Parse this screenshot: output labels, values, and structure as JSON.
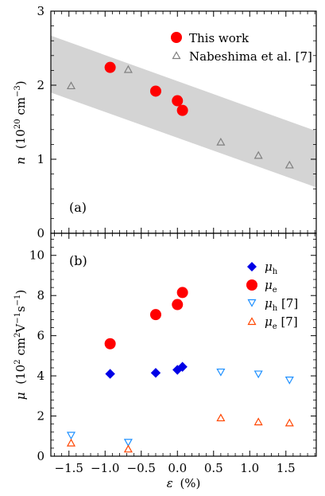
{
  "chart_data": [
    {
      "type": "scatter",
      "panel_label": "(a)",
      "ylabel_main": "n",
      "ylabel_unit": "(10",
      "ylabel_exp": "20",
      "ylabel_unit2": " cm",
      "ylabel_exp2": "−3",
      "ylabel_close": ")",
      "xlim": [
        -1.75,
        1.92
      ],
      "ylim": [
        0,
        3
      ],
      "y_ticks": [
        0,
        1,
        2,
        3
      ],
      "y_tick_labels": [
        "0",
        "1",
        "2",
        "3"
      ],
      "legend_position": "top-right",
      "band": {
        "x": [
          -1.75,
          1.92
        ],
        "lower": [
          1.9,
          0.62
        ],
        "upper": [
          2.67,
          1.38
        ],
        "color": "#d4d4d4"
      },
      "series": [
        {
          "name": "This work",
          "marker": "circle",
          "color": "#ff0000",
          "points": [
            [
              -0.93,
              2.24
            ],
            [
              -0.3,
              1.92
            ],
            [
              0.0,
              1.79
            ],
            [
              0.07,
              1.66
            ]
          ]
        },
        {
          "name": "Nabeshima et al. [7]",
          "marker": "triangle-up-open",
          "color": "#808080",
          "points": [
            [
              -1.47,
              1.99
            ],
            [
              -0.68,
              2.21
            ],
            [
              0.6,
              1.23
            ],
            [
              1.12,
              1.05
            ],
            [
              1.55,
              0.92
            ]
          ]
        }
      ]
    },
    {
      "type": "scatter",
      "panel_label": "(b)",
      "ylabel_main": "μ",
      "ylabel_unit": "(10",
      "ylabel_exp": "2",
      "ylabel_unit2": " cm",
      "ylabel_exp2": "2",
      "ylabel_unit3": "V",
      "ylabel_exp3": "−1",
      "ylabel_unit4": "s",
      "ylabel_exp4": "−1",
      "ylabel_close": ")",
      "xlabel_main": "ε",
      "xlabel_unit": "(%)",
      "xlim": [
        -1.75,
        1.92
      ],
      "ylim": [
        0,
        11.1
      ],
      "x_ticks": [
        -1.5,
        -1.0,
        -0.5,
        0.0,
        0.5,
        1.0,
        1.5
      ],
      "x_tick_labels": [
        "−1.5",
        "−1.0",
        "−0.5",
        "0.0",
        "0.5",
        "1.0",
        "1.5"
      ],
      "y_ticks": [
        0,
        2,
        4,
        6,
        8,
        10
      ],
      "y_tick_labels": [
        "0",
        "2",
        "4",
        "6",
        "8",
        "10"
      ],
      "legend_position": "top-right",
      "series": [
        {
          "name_main": "μ",
          "name_sub": "h",
          "name_suffix": "",
          "marker": "diamond",
          "color": "#0000e6",
          "points": [
            [
              -0.93,
              4.1
            ],
            [
              -0.3,
              4.15
            ],
            [
              0.0,
              4.3
            ],
            [
              0.07,
              4.45
            ]
          ]
        },
        {
          "name_main": "μ",
          "name_sub": "e",
          "name_suffix": "",
          "marker": "circle",
          "color": "#ff0000",
          "points": [
            [
              -0.93,
              5.6
            ],
            [
              -0.3,
              7.05
            ],
            [
              0.0,
              7.55
            ],
            [
              0.07,
              8.15
            ]
          ]
        },
        {
          "name_main": "μ",
          "name_sub": "h",
          "name_suffix": " [7]",
          "marker": "triangle-down-open",
          "color": "#1e90ff",
          "points": [
            [
              -1.47,
              1.05
            ],
            [
              -0.68,
              0.7
            ],
            [
              0.6,
              4.2
            ],
            [
              1.12,
              4.1
            ],
            [
              1.55,
              3.8
            ]
          ]
        },
        {
          "name_main": "μ",
          "name_sub": "e",
          "name_suffix": " [7]",
          "marker": "triangle-up-open",
          "color": "#ff4500",
          "points": [
            [
              -1.47,
              0.65
            ],
            [
              -0.68,
              0.35
            ],
            [
              0.6,
              1.9
            ],
            [
              1.12,
              1.7
            ],
            [
              1.55,
              1.65
            ]
          ]
        }
      ]
    }
  ]
}
